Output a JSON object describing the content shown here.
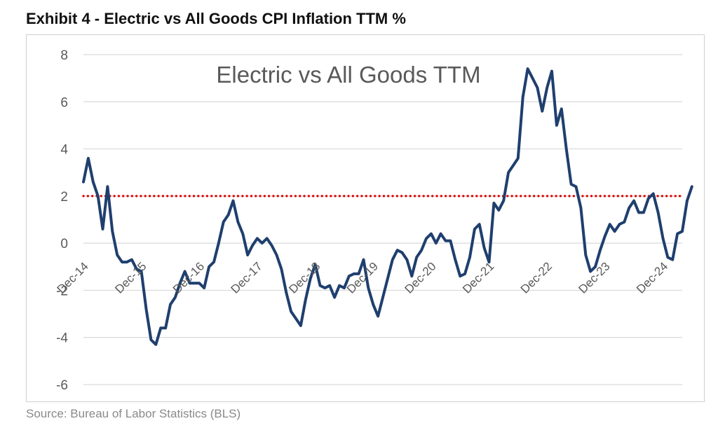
{
  "exhibit_title": "Exhibit 4 - Electric vs All Goods CPI Inflation TTM %",
  "source": "Source: Bureau of Labor Statistics (BLS)",
  "colors": {
    "series": "#1f3f6e",
    "reference": "#e00000",
    "grid": "#d9d9d9",
    "text": "#595959"
  },
  "chart_data": {
    "type": "line",
    "title": "Electric vs All Goods TTM",
    "xlabel": "",
    "ylabel": "",
    "ylim": [
      -6,
      8
    ],
    "yticks": [
      8,
      6,
      4,
      2,
      0,
      -2,
      -4,
      -6
    ],
    "xlim": [
      0,
      124
    ],
    "xticks": [
      {
        "label": "Dec-14",
        "index": 0
      },
      {
        "label": "Dec-15",
        "index": 12
      },
      {
        "label": "Dec-16",
        "index": 24
      },
      {
        "label": "Dec-17",
        "index": 36
      },
      {
        "label": "Dec-18",
        "index": 48
      },
      {
        "label": "Dec-19",
        "index": 60
      },
      {
        "label": "Dec-20",
        "index": 72
      },
      {
        "label": "Dec-21",
        "index": 84
      },
      {
        "label": "Dec-22",
        "index": 96
      },
      {
        "label": "Dec-23",
        "index": 108
      },
      {
        "label": "Dec-24",
        "index": 120
      }
    ],
    "grid": true,
    "reference_line": {
      "value": 2,
      "style": "dotted"
    },
    "series": [
      {
        "name": "Electric vs All Goods TTM",
        "values": [
          2.6,
          3.6,
          2.6,
          2.0,
          0.6,
          2.4,
          0.5,
          -0.5,
          -0.8,
          -0.8,
          -0.7,
          -1.1,
          -1.2,
          -2.8,
          -4.1,
          -4.3,
          -3.6,
          -3.6,
          -2.6,
          -2.3,
          -1.7,
          -1.2,
          -1.7,
          -1.7,
          -1.7,
          -1.9,
          -1.0,
          -0.8,
          0.0,
          0.9,
          1.2,
          1.8,
          0.9,
          0.4,
          -0.5,
          -0.1,
          0.2,
          0.0,
          0.2,
          -0.1,
          -0.5,
          -1.1,
          -2.1,
          -2.9,
          -3.2,
          -3.5,
          -2.4,
          -1.5,
          -0.9,
          -1.8,
          -1.9,
          -1.8,
          -2.3,
          -1.8,
          -1.9,
          -1.4,
          -1.3,
          -1.3,
          -0.7,
          -1.9,
          -2.6,
          -3.1,
          -2.3,
          -1.5,
          -0.7,
          -0.3,
          -0.4,
          -0.7,
          -1.4,
          -0.6,
          -0.3,
          0.2,
          0.4,
          0.0,
          0.4,
          0.1,
          0.1,
          -0.7,
          -1.4,
          -1.3,
          -0.6,
          0.6,
          0.8,
          -0.2,
          -0.8,
          1.7,
          1.4,
          1.8,
          3.0,
          3.3,
          3.6,
          6.2,
          7.4,
          7.0,
          6.6,
          5.6,
          6.6,
          7.3,
          5.0,
          5.7,
          4.0,
          2.5,
          2.4,
          1.5,
          -0.5,
          -1.2,
          -1.0,
          -0.3,
          0.3,
          0.8,
          0.5,
          0.8,
          0.9,
          1.5,
          1.8,
          1.3,
          1.3,
          1.9,
          2.1,
          1.3,
          0.2,
          -0.6,
          -0.7,
          0.4,
          0.5,
          1.8,
          2.4
        ]
      }
    ]
  }
}
